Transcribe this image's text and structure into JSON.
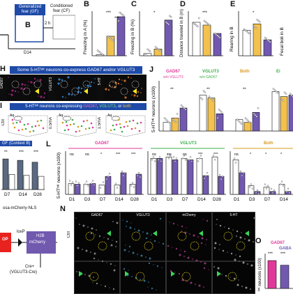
{
  "panel_labels": {
    "B": "B",
    "C": "C",
    "D": "D",
    "E": "E",
    "H": "H",
    "I": "I",
    "J": "J",
    "L": "L",
    "N": "N",
    "O": "O"
  },
  "design": {
    "gf_box": "Generalized fear (GF)",
    "cf_box": "Conditioned fear (CF)",
    "context_b": "B",
    "interval": "2 h",
    "day": "D14"
  },
  "h_title": "Some 5-HTˡᵒᴷ neurons co-express GAD67 and/or VGLUT3",
  "h_channels": [
    "GAD67",
    "VGLUT3",
    "5-HT"
  ],
  "i_title_parts": [
    "5-HTˡᵒᴷ neurons co-expressing ",
    "GAD67",
    ", ",
    "VGLUT3",
    ", or ",
    "both"
  ],
  "i_conditions": [
    "Ctrl",
    "0.5mA",
    "1.5mA"
  ],
  "i_region_labels": {
    "aq": "Aq",
    "dr": "Dₗ",
    "dl": "Dₗ"
  },
  "k_label": "GF (Context B)",
  "k_x": [
    "D7",
    "D14",
    "D28"
  ],
  "k_stars": [
    "**",
    "***",
    "***"
  ],
  "j_cats": [
    "GAD67",
    "VGLUT3",
    "Both",
    "Ei"
  ],
  "j_cat_sub": [
    "w/o VGLUT3",
    "w/o GAD67",
    "",
    ""
  ],
  "j_ylabel": "5-HTˡᵒᴷ neurons (x100)",
  "l_groups": [
    "GAD67",
    "VGLUT3",
    "Both"
  ],
  "l_ylabel": "5-HTˡᵒᴷ neurons (x100)",
  "l_x": [
    "D1",
    "D3",
    "D7",
    "D14",
    "D28"
  ],
  "l_sig": {
    "GAD67": [
      "ns",
      "ns",
      "*",
      "***",
      "***"
    ],
    "VGLUT3": [
      "ns",
      "ns",
      "ns",
      "***",
      "***"
    ],
    "Both": [
      "ns",
      "*",
      "*",
      "*",
      "*"
    ]
  },
  "m_construct": {
    "allele": "osa-mCherry-NLS",
    "loxp": "loxP",
    "stop": "OP",
    "h2b": "H2B",
    "mcherry": "mCherry",
    "cre": "Cre+",
    "driver": "(VGLUT3-Cre)"
  },
  "n_channels": [
    "GAD67",
    "VGLUT3",
    "mCherry",
    "5-HT"
  ],
  "n_row": "Ctrl",
  "o_legend": [
    "GAD67",
    "GABA"
  ],
  "o_ylabel": "ˡᵒᴷ neurons (x100)",
  "o_stars": [
    "***",
    "***"
  ],
  "y_labels": {
    "B": "Freezing in A (%)",
    "C": "Freezing in B (%)",
    "D": "Distance traveled in B (m)",
    "E": "Rearing in B",
    "F": "Fecal boli in B"
  },
  "top_stars": {
    "B": [
      "***",
      "***"
    ],
    "C": [
      "*"
    ],
    "D": [
      "***"
    ],
    "E": [
      "*"
    ]
  },
  "colors": {
    "ctrl": "#ffffff",
    "low": "#f2c14e",
    "high": "#7159b0",
    "gad67": "#e0399a",
    "vglut3": "#3bb04a",
    "both": "#d69b1f",
    "title_bar": "#1e4aa8"
  },
  "chart_data": [
    {
      "type": "bar",
      "panel": "B",
      "categories": [
        "Ctrl",
        "0.5mA",
        "1.5mA"
      ],
      "values": [
        2,
        35,
        70
      ],
      "ylabel": "Freezing in A (%)"
    },
    {
      "type": "bar",
      "panel": "C",
      "categories": [
        "Ctrl",
        "0.5mA",
        "1.5mA"
      ],
      "values": [
        2,
        6,
        32
      ],
      "ylabel": "Freezing in B (%)"
    },
    {
      "type": "bar",
      "panel": "D",
      "categories": [
        "Ctrl",
        "0.5mA",
        "1.5mA"
      ],
      "values": [
        60,
        55,
        40
      ],
      "ylabel": "Distance traveled in B (m)"
    },
    {
      "type": "bar",
      "panel": "E",
      "categories": [
        "Ctrl",
        "0.5mA",
        "1.5mA"
      ],
      "values": [
        40,
        50,
        25
      ],
      "ylabel": "Rearing in B"
    },
    {
      "type": "bar",
      "panel": "J",
      "categories": [
        "GAD67",
        "VGLUT3",
        "Both",
        "Ei"
      ],
      "series": [
        {
          "name": "Ctrl",
          "values": [
            1.2,
            5.0,
            1.6,
            5.5
          ]
        },
        {
          "name": "0.5mA",
          "values": [
            1.8,
            4.6,
            1.2,
            4.8
          ]
        },
        {
          "name": "1.5mA",
          "values": [
            3.2,
            2.4,
            2.6,
            5.0
          ]
        }
      ],
      "ylabel": "5-HTˡᵒᴷ neurons (x100)"
    },
    {
      "type": "bar",
      "panel": "K",
      "categories": [
        "D7",
        "D14",
        "D28"
      ],
      "series": [
        {
          "values": [
            6.5,
            6.2,
            5.8
          ]
        },
        {
          "values": [
            3.2,
            3.0,
            2.8
          ]
        }
      ]
    },
    {
      "type": "bar",
      "panel": "L",
      "categories": [
        "D1",
        "D3",
        "D7",
        "D14",
        "D28"
      ],
      "series": [
        {
          "name": "GAD67",
          "values": [
            [
              1.5,
              1.4
            ],
            [
              1.4,
              1.5
            ],
            [
              1.3,
              2.5
            ],
            [
              1.3,
              3.0
            ],
            [
              1.4,
              2.8
            ]
          ]
        },
        {
          "name": "VGLUT3",
          "values": [
            [
              5.0,
              5.0
            ],
            [
              5.2,
              4.8
            ],
            [
              5.0,
              4.8
            ],
            [
              5.0,
              2.6
            ],
            [
              5.2,
              2.5
            ]
          ]
        },
        {
          "name": "Both",
          "values": [
            [
              4.8,
              3.0
            ],
            [
              1.2,
              0.4
            ],
            [
              1.0,
              0.4
            ],
            [
              1.4,
              0.4
            ],
            [
              1.2,
              0.4
            ]
          ]
        }
      ],
      "ylabel": "5-HTˡᵒᴷ neurons (x100)"
    },
    {
      "type": "bar",
      "panel": "O",
      "categories": [
        "GAD67",
        "GABA"
      ],
      "values": [
        2.4,
        2.0
      ]
    }
  ]
}
